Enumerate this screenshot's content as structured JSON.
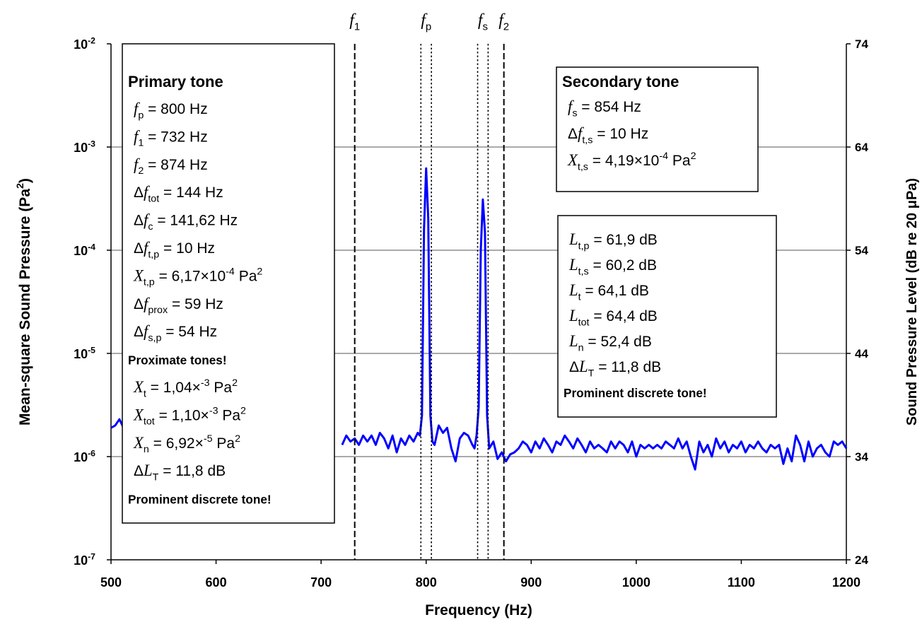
{
  "chart_data": {
    "type": "line",
    "xlabel": [
      {
        "t": "Frequency (Hz)"
      }
    ],
    "ylabel": [
      {
        "t": "Mean-square Sound Pressure (Pa"
      },
      {
        "sup": "2"
      },
      {
        "t": ")"
      }
    ],
    "y2label": [
      {
        "t": "Sound Pressure Level (dB re 20 μPa)"
      }
    ],
    "xlim": [
      500,
      1200
    ],
    "xticks": [
      500,
      600,
      700,
      800,
      900,
      1000,
      1100,
      1200
    ],
    "ylim": [
      1e-07,
      0.01
    ],
    "log_y": true,
    "yticks": [
      {
        "value": 1e-07,
        "label": [
          {
            "t": "10"
          },
          {
            "sup": "-7"
          }
        ]
      },
      {
        "value": 1e-06,
        "label": [
          {
            "t": "10"
          },
          {
            "sup": "-6"
          }
        ]
      },
      {
        "value": 1e-05,
        "label": [
          {
            "t": "10"
          },
          {
            "sup": "-5"
          }
        ]
      },
      {
        "value": 0.0001,
        "label": [
          {
            "t": "10"
          },
          {
            "sup": "-4"
          }
        ]
      },
      {
        "value": 0.001,
        "label": [
          {
            "t": "10"
          },
          {
            "sup": "-3"
          }
        ]
      },
      {
        "value": 0.01,
        "label": [
          {
            "t": "10"
          },
          {
            "sup": "-2"
          }
        ]
      }
    ],
    "y2lim": [
      24,
      74
    ],
    "y2ticks": [
      24,
      34,
      44,
      54,
      64,
      74
    ],
    "grid": true,
    "series": [
      {
        "color": "#0000ff",
        "x": [
          500,
          504,
          508,
          512,
          516,
          720,
          724,
          728,
          732,
          736,
          740,
          744,
          748,
          752,
          756,
          760,
          764,
          768,
          772,
          776,
          780,
          784,
          788,
          792,
          794,
          796,
          798,
          800,
          802,
          804,
          806,
          808,
          812,
          816,
          820,
          824,
          828,
          832,
          836,
          840,
          844,
          846,
          848,
          850,
          852,
          854,
          856,
          858,
          860,
          864,
          868,
          872,
          876,
          880,
          884,
          888,
          892,
          896,
          900,
          904,
          908,
          912,
          916,
          920,
          924,
          928,
          932,
          936,
          940,
          944,
          948,
          952,
          956,
          960,
          964,
          968,
          972,
          976,
          980,
          984,
          988,
          992,
          996,
          1000,
          1004,
          1008,
          1012,
          1016,
          1020,
          1024,
          1028,
          1032,
          1036,
          1040,
          1044,
          1048,
          1052,
          1056,
          1060,
          1064,
          1068,
          1072,
          1076,
          1080,
          1084,
          1088,
          1092,
          1096,
          1100,
          1104,
          1108,
          1112,
          1116,
          1120,
          1124,
          1128,
          1132,
          1136,
          1140,
          1144,
          1148,
          1152,
          1156,
          1160,
          1164,
          1168,
          1172,
          1176,
          1180,
          1184,
          1188,
          1192,
          1196,
          1200
        ],
        "values": [
          1.9e-06,
          2e-06,
          2.3e-06,
          1.9e-06,
          null,
          1.3e-06,
          1.6e-06,
          1.4e-06,
          1.5e-06,
          1.3e-06,
          1.6e-06,
          1.4e-06,
          1.6e-06,
          1.3e-06,
          1.7e-06,
          1.5e-06,
          1.2e-06,
          1.6e-06,
          1.1e-06,
          1.5e-06,
          1.3e-06,
          1.6e-06,
          1.4e-06,
          1.7e-06,
          1.6e-06,
          2.5e-06,
          0.00016,
          0.00062,
          0.0002,
          2.5e-06,
          1.4e-06,
          1.3e-06,
          2e-06,
          1.7e-06,
          1.9e-06,
          1.2e-06,
          9e-07,
          1.5e-06,
          1.7e-06,
          1.6e-06,
          1.3e-06,
          1.2e-06,
          1.6e-06,
          3e-06,
          0.0001,
          0.00031,
          0.00015,
          2.5e-06,
          1.2e-06,
          1.4e-06,
          9.5e-07,
          1.1e-06,
          9e-07,
          1.05e-06,
          1.1e-06,
          1.2e-06,
          1.4e-06,
          1.3e-06,
          1.1e-06,
          1.4e-06,
          1.2e-06,
          1.5e-06,
          1.3e-06,
          1.1e-06,
          1.4e-06,
          1.3e-06,
          1.6e-06,
          1.4e-06,
          1.2e-06,
          1.5e-06,
          1.3e-06,
          1.1e-06,
          1.4e-06,
          1.2e-06,
          1.3e-06,
          1.2e-06,
          1.1e-06,
          1.4e-06,
          1.2e-06,
          1.4e-06,
          1.3e-06,
          1.1e-06,
          1.4e-06,
          1e-06,
          1.3e-06,
          1.2e-06,
          1.3e-06,
          1.2e-06,
          1.3e-06,
          1.2e-06,
          1.4e-06,
          1.3e-06,
          1.2e-06,
          1.5e-06,
          1.2e-06,
          1.4e-06,
          1e-06,
          7.5e-07,
          1.4e-06,
          1.1e-06,
          1.3e-06,
          1e-06,
          1.5e-06,
          1.2e-06,
          1.4e-06,
          1.1e-06,
          1.3e-06,
          1.2e-06,
          1.4e-06,
          1.1e-06,
          1.3e-06,
          1.2e-06,
          1.4e-06,
          1.2e-06,
          1.1e-06,
          1.3e-06,
          1.2e-06,
          1.3e-06,
          8.5e-07,
          1.2e-06,
          9e-07,
          1.6e-06,
          1.3e-06,
          9e-07,
          1.4e-06,
          1e-06,
          1.2e-06,
          1.3e-06,
          1.1e-06,
          1e-06,
          1.4e-06,
          1.3e-06,
          1.4e-06,
          1.2e-06
        ]
      }
    ],
    "markers": [
      {
        "lines": [
          732
        ],
        "dash": "dashed",
        "label": [
          {
            "i": "f"
          },
          {
            "sub": "1"
          }
        ]
      },
      {
        "lines": [
          795,
          805
        ],
        "dash": "dotted",
        "label": [
          {
            "i": "f"
          },
          {
            "sub": "p"
          }
        ]
      },
      {
        "lines": [
          849,
          859
        ],
        "dash": "dotted",
        "label": [
          {
            "i": "f"
          },
          {
            "sub": "s"
          }
        ]
      },
      {
        "lines": [
          874
        ],
        "dash": "dashed",
        "label": [
          {
            "i": "f"
          },
          {
            "sub": "2"
          }
        ]
      }
    ],
    "annotations": [
      {
        "lines": [
          [
            {
              "h": "Primary tone"
            }
          ],
          [
            {
              "i": "f"
            },
            {
              "sub": "p"
            },
            {
              "t": " = 800 Hz"
            }
          ],
          [
            {
              "i": "f"
            },
            {
              "sub": "1"
            },
            {
              "t": " = 732 Hz"
            }
          ],
          [
            {
              "i": "f"
            },
            {
              "sub": "2"
            },
            {
              "t": " = 874 Hz"
            }
          ],
          [
            {
              "t": "Δ"
            },
            {
              "i": "f"
            },
            {
              "sub": "tot"
            },
            {
              "t": " = 144 Hz"
            }
          ],
          [
            {
              "t": "Δ"
            },
            {
              "i": "f"
            },
            {
              "sub": "c"
            },
            {
              "t": " = 141,62 Hz"
            }
          ],
          [
            {
              "t": "Δ"
            },
            {
              "i": "f"
            },
            {
              "sub": "t,p"
            },
            {
              "t": " = 10 Hz"
            }
          ],
          [
            {
              "i": "X"
            },
            {
              "sub": "t,p"
            },
            {
              "t": " = 6,17×10"
            },
            {
              "sup": "-4"
            },
            {
              "t": " Pa"
            },
            {
              "sup": "2"
            }
          ],
          [
            {
              "t": "Δ"
            },
            {
              "i": "f"
            },
            {
              "sub": "prox"
            },
            {
              "t": " = 59 Hz"
            }
          ],
          [
            {
              "t": "Δ"
            },
            {
              "i": "f"
            },
            {
              "sub": "s,p"
            },
            {
              "t": " = 54 Hz"
            }
          ],
          [
            {
              "b": "Proximate tones!"
            }
          ],
          [
            {
              "i": "X"
            },
            {
              "sub": "t"
            },
            {
              "t": " = 1,04×"
            },
            {
              "sup": "-3"
            },
            {
              "t": " Pa"
            },
            {
              "sup": "2"
            }
          ],
          [
            {
              "i": "X"
            },
            {
              "sub": "tot"
            },
            {
              "t": " = 1,10×"
            },
            {
              "sup": "-3"
            },
            {
              "t": " Pa"
            },
            {
              "sup": "2"
            }
          ],
          [
            {
              "i": "X"
            },
            {
              "sub": "n"
            },
            {
              "t": " = 6,92×"
            },
            {
              "sup": "-5"
            },
            {
              "t": " Pa"
            },
            {
              "sup": "2"
            }
          ],
          [
            {
              "t": "Δ"
            },
            {
              "i": "L"
            },
            {
              "sub": "T"
            },
            {
              "t": " = 11,8 dB"
            }
          ],
          [
            {
              "b": "Prominent discrete tone!"
            }
          ]
        ]
      },
      {
        "lines": [
          [
            {
              "h": "Secondary tone"
            }
          ],
          [
            {
              "i": "f"
            },
            {
              "sub": "s"
            },
            {
              "t": " = 854 Hz"
            }
          ],
          [
            {
              "t": "Δ"
            },
            {
              "i": "f"
            },
            {
              "sub": "t,s"
            },
            {
              "t": " = 10 Hz"
            }
          ],
          [
            {
              "i": "X"
            },
            {
              "sub": "t,s"
            },
            {
              "t": " = 4,19×10"
            },
            {
              "sup": "-4"
            },
            {
              "t": " Pa"
            },
            {
              "sup": "2"
            }
          ]
        ]
      },
      {
        "lines": [
          [
            {
              "i": "L"
            },
            {
              "sub": "t,p"
            },
            {
              "t": " = 61,9 dB"
            }
          ],
          [
            {
              "i": "L"
            },
            {
              "sub": "t,s"
            },
            {
              "t": " = 60,2 dB"
            }
          ],
          [
            {
              "i": "L"
            },
            {
              "sub": "t"
            },
            {
              "t": " = 64,1 dB"
            }
          ],
          [
            {
              "i": "L"
            },
            {
              "sub": "tot"
            },
            {
              "t": " = 64,4 dB"
            }
          ],
          [
            {
              "i": "L"
            },
            {
              "sub": "n"
            },
            {
              "t": " = 52,4 dB"
            }
          ],
          [
            {
              "t": "Δ"
            },
            {
              "i": "L"
            },
            {
              "sub": "T"
            },
            {
              "t": " = 11,8 dB"
            }
          ],
          [
            {
              "b": "Prominent discrete tone!"
            }
          ]
        ]
      }
    ]
  }
}
